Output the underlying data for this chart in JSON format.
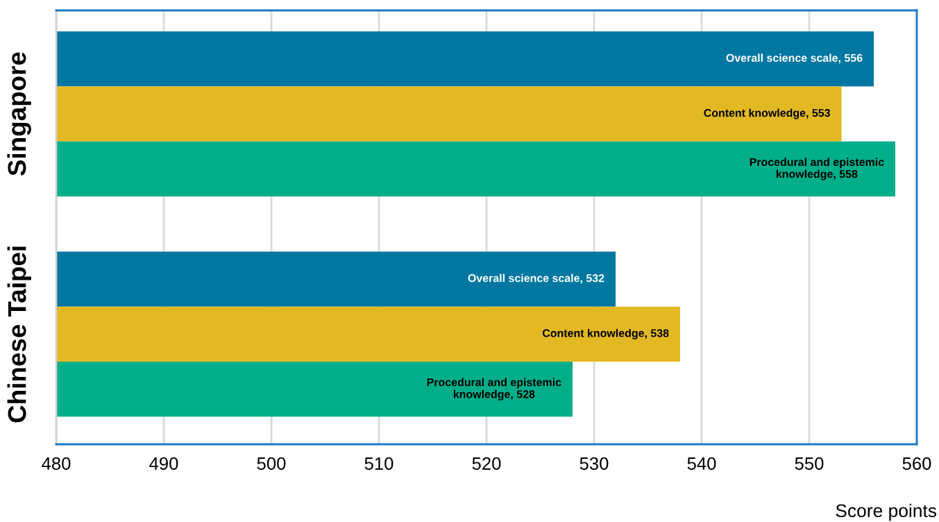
{
  "chart_data": {
    "type": "bar",
    "orientation": "horizontal",
    "categories": [
      "Singapore",
      "Chinese Taipei"
    ],
    "series": [
      {
        "color": "#0077a1",
        "values": [
          556,
          532
        ],
        "value_labels": [
          "Overall science scale, 556",
          "Overall science scale, 532"
        ]
      },
      {
        "color": "#e3b923",
        "values": [
          553,
          538
        ],
        "value_labels": [
          "Content knowledge, 553",
          "Content knowledge, 538"
        ]
      },
      {
        "color": "#00ae89",
        "values": [
          558,
          528
        ],
        "value_labels": [
          "Procedural and epistemic\nknowledge, 558",
          "Procedural and epistemic\nknowledge, 528"
        ]
      }
    ],
    "xlim": [
      480,
      560
    ],
    "xticks": [
      480,
      490,
      500,
      510,
      520,
      530,
      540,
      550,
      560
    ],
    "xlabel": "Score points",
    "grid": "x"
  }
}
